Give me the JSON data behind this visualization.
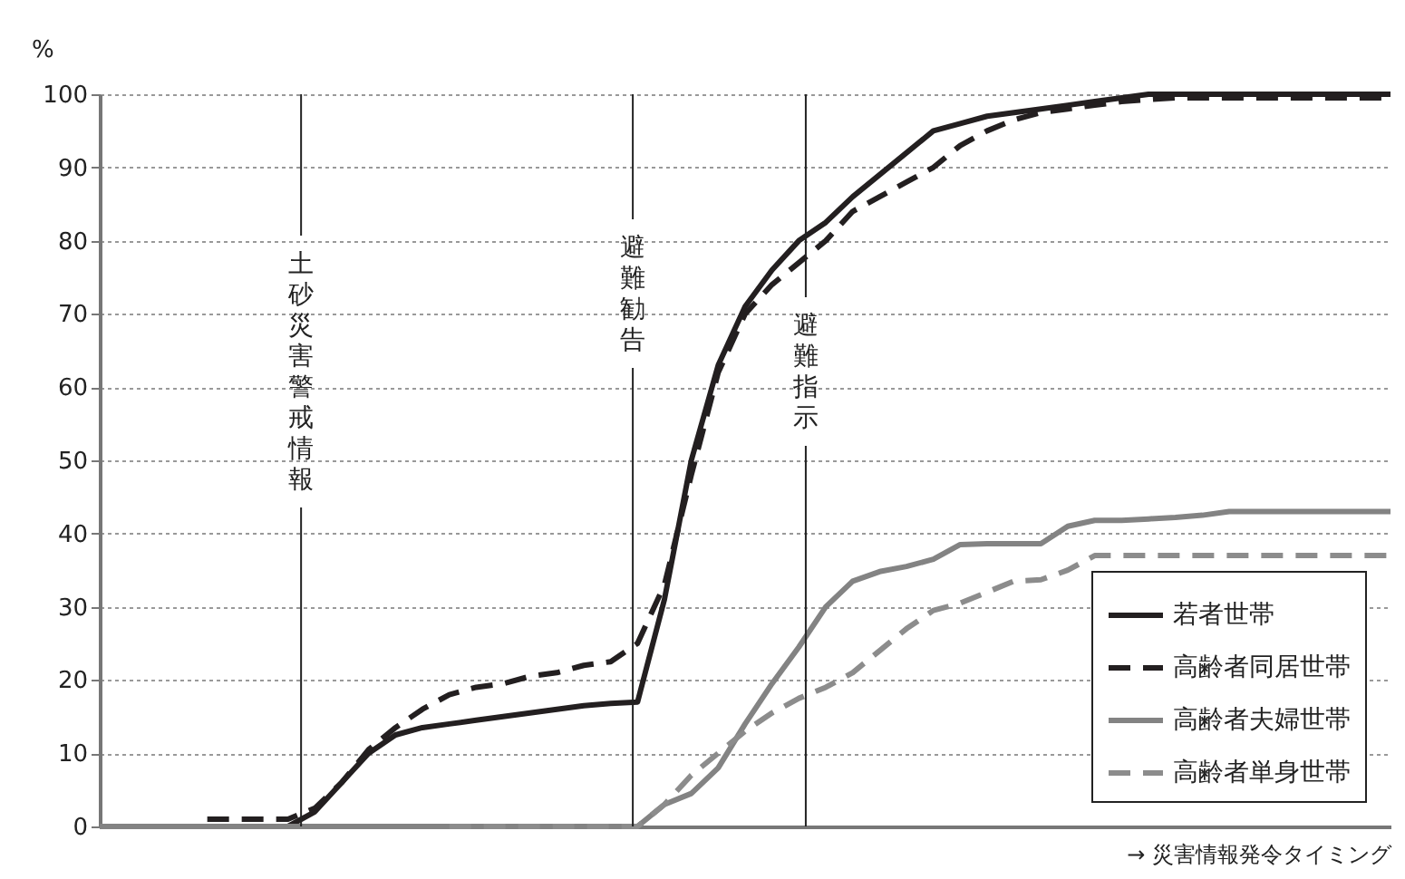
{
  "chart_data": {
    "type": "line",
    "ylabel": "%",
    "xlabel": "→ 災害情報発令タイミング",
    "categories": [
      null,
      null,
      null,
      null,
      null,
      null,
      null,
      null,
      null,
      null,
      null,
      null,
      null,
      null,
      null,
      null,
      null,
      null,
      null,
      null,
      null,
      null,
      null,
      null,
      null,
      null,
      null,
      null,
      null,
      null,
      null,
      null,
      null,
      null,
      null,
      null,
      null,
      null,
      null,
      null,
      null,
      null,
      null,
      null,
      null,
      null,
      null,
      null,
      null
    ],
    "series": [
      {
        "name": "若者世帯",
        "color": "#231f20",
        "line_style": "solid",
        "values": [
          0,
          0,
          0,
          0,
          0,
          0,
          0,
          0,
          2,
          6,
          10,
          12.5,
          13.5,
          14,
          14.5,
          15,
          15.5,
          16,
          16.5,
          16.8,
          17,
          31,
          50,
          63,
          71,
          76,
          80,
          82.5,
          86,
          89,
          92,
          95,
          96,
          97,
          97.5,
          98,
          98.5,
          99,
          99.5,
          100,
          100,
          100,
          100,
          100,
          100,
          100,
          100,
          100,
          100
        ]
      },
      {
        "name": "高齢者同居世帯",
        "color": "#231f20",
        "line_style": "dashed",
        "values": [
          null,
          null,
          null,
          null,
          1,
          1,
          1,
          1,
          2.5,
          6,
          10.5,
          13.5,
          16,
          18,
          19,
          19.5,
          20.5,
          21,
          22,
          22.5,
          25,
          33,
          48,
          62,
          70,
          74,
          77,
          80,
          84,
          86,
          88,
          90,
          93,
          95,
          96.5,
          97.5,
          98,
          98.5,
          99,
          99.3,
          99.5,
          99.5,
          99.5,
          99.5,
          99.5,
          99.5,
          99.5,
          99.5,
          99.5
        ]
      },
      {
        "name": "高齢者夫婦世帯",
        "color": "#838383",
        "line_style": "solid",
        "values": [
          0,
          0,
          0,
          0,
          0,
          0,
          0,
          0,
          0,
          0,
          0,
          0,
          0,
          0,
          0,
          0,
          0,
          0,
          0,
          0,
          0,
          3,
          4.5,
          8,
          14,
          19.5,
          24.5,
          30,
          33.5,
          34.8,
          35.5,
          36.5,
          38.5,
          38.6,
          38.6,
          38.6,
          41,
          41.8,
          41.8,
          42,
          42.2,
          42.5,
          43,
          43,
          43,
          43,
          43,
          43,
          43
        ]
      },
      {
        "name": "高齢者単身世帯",
        "color": "#8c8c8c",
        "line_style": "dashed",
        "values": [
          null,
          null,
          null,
          null,
          null,
          null,
          null,
          null,
          null,
          null,
          null,
          null,
          null,
          0,
          0,
          0,
          0,
          0,
          0,
          0,
          0,
          3,
          7,
          10,
          13,
          15.5,
          17.5,
          19,
          21,
          24,
          27,
          29.5,
          30.5,
          32,
          33.5,
          33.7,
          35,
          37,
          37,
          37,
          37,
          37,
          37,
          37,
          37,
          37,
          37,
          37,
          37
        ]
      }
    ],
    "ylim": [
      0,
      100
    ],
    "yticks": [
      0,
      10,
      20,
      30,
      40,
      50,
      60,
      70,
      80,
      90,
      100
    ],
    "grid": "y",
    "legend": "bottom right",
    "tick_labels": "y",
    "annotations": [
      "土砂災害警戒情報",
      "避難勧告",
      "避難指示"
    ]
  }
}
